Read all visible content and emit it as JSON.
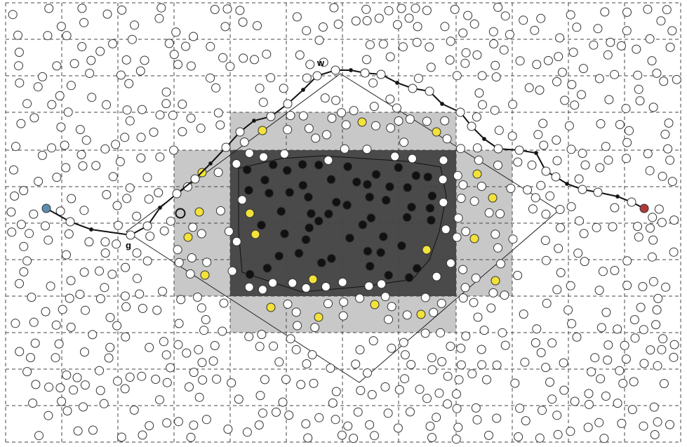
{
  "diagram": {
    "colors": {
      "background": "#ffffff",
      "grid_line": "#444444",
      "outer_zone": "#c8c8c8",
      "inner_zone": "#4a4a4a",
      "node_fill": "#ffffff",
      "node_stroke": "#333333",
      "inner_node": "#111111",
      "boundary_node": "#f2e23a",
      "source_node": "#5a8fb0",
      "destination_node": "#b03a3a",
      "path_line": "#111111"
    },
    "labels": {
      "g": "g",
      "w": "w"
    }
  }
}
